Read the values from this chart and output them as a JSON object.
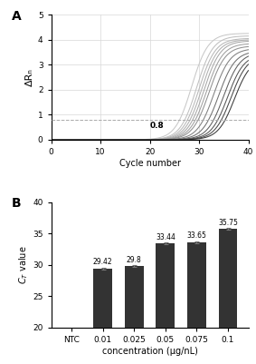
{
  "panel_A": {
    "ylabel": "ΔRₙ",
    "xlabel": "Cycle number",
    "xlim": [
      0,
      40
    ],
    "ylim": [
      0,
      5
    ],
    "threshold": 0.8,
    "threshold_label": "0.8",
    "num_curves": 13,
    "curve_midpoints": [
      28.5,
      29.5,
      30.0,
      30.5,
      31.0,
      31.5,
      32.0,
      33.0,
      34.0,
      35.0,
      35.8,
      36.5,
      37.2
    ],
    "curve_max": [
      4.25,
      4.15,
      4.05,
      4.0,
      3.95,
      3.85,
      3.75,
      3.65,
      3.55,
      3.5,
      3.42,
      3.38,
      3.28
    ],
    "curve_steepness": [
      0.6,
      0.6,
      0.6,
      0.6,
      0.6,
      0.6,
      0.6,
      0.6,
      0.6,
      0.6,
      0.6,
      0.6,
      0.6
    ],
    "curve_colors": [
      "#c8c8c8",
      "#c0c0c0",
      "#b8b8b8",
      "#b0b0b0",
      "#a8a8a8",
      "#a0a0a0",
      "#909090",
      "#808080",
      "#707070",
      "#606060",
      "#555555",
      "#484848",
      "#3a3a3a"
    ],
    "grid_color": "#d8d8d8",
    "threshold_color": "#aaaaaa"
  },
  "panel_B": {
    "ylabel": "$C_T$ value",
    "xlabel": "concentration (µg/nL)",
    "categories": [
      "NTC",
      "0.01",
      "0.025",
      "0.05",
      "0.075",
      "0.1"
    ],
    "values": [
      0,
      29.42,
      29.8,
      33.44,
      33.65,
      35.75
    ],
    "labels": [
      "",
      "29.42",
      "29.8",
      "33.44",
      "33.65",
      "35.75"
    ],
    "errors": [
      0,
      0.18,
      0.15,
      0.13,
      0.13,
      0.13
    ],
    "bar_color": "#333333",
    "ylim": [
      20,
      40
    ],
    "yticks": [
      20,
      25,
      30,
      35,
      40
    ]
  }
}
